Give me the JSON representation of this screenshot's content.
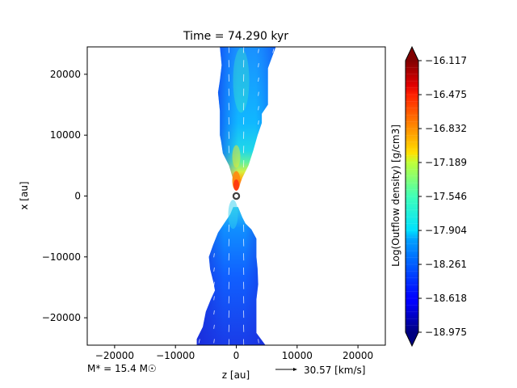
{
  "chart_data": {
    "type": "heatmap",
    "title": "Time = 74.290 kyr",
    "xlabel": "z [au]",
    "ylabel": "x [au]",
    "xlim": [
      -24500,
      24500
    ],
    "ylim": [
      -24500,
      24500
    ],
    "x_ticks": [
      {
        "value": -20000,
        "label": "−20000"
      },
      {
        "value": -10000,
        "label": "−10000"
      },
      {
        "value": 0,
        "label": "0"
      },
      {
        "value": 10000,
        "label": "10000"
      },
      {
        "value": 20000,
        "label": "20000"
      }
    ],
    "y_ticks": [
      {
        "value": 20000,
        "label": "20000"
      },
      {
        "value": 10000,
        "label": "10000"
      },
      {
        "value": 0,
        "label": "0"
      },
      {
        "value": -10000,
        "label": "−10000"
      },
      {
        "value": -20000,
        "label": "−20000"
      }
    ],
    "colorbar": {
      "label": "Log(Outflow density) [g/cm3]",
      "range": [
        -18.975,
        -16.117
      ],
      "colormap": "jet",
      "extend": "both",
      "ticks": [
        "−16.117",
        "−16.475",
        "−16.832",
        "−17.189",
        "−17.546",
        "−17.904",
        "−18.261",
        "−18.618",
        "−18.975"
      ],
      "tick_values": [
        -16.117,
        -16.475,
        -16.832,
        -17.189,
        -17.546,
        -17.904,
        -18.261,
        -18.618,
        -18.975
      ]
    },
    "outflow_upper": {
      "right_edge": [
        [
          500,
          1700
        ],
        [
          1000,
          3000
        ],
        [
          2000,
          5000
        ],
        [
          2800,
          7500
        ],
        [
          3500,
          10000
        ],
        [
          4200,
          12000
        ],
        [
          4200,
          13500
        ],
        [
          5200,
          15000
        ],
        [
          5200,
          21000
        ],
        [
          6500,
          24500
        ]
      ],
      "left_edge": [
        [
          -300,
          1700
        ],
        [
          -600,
          3000
        ],
        [
          -1200,
          5000
        ],
        [
          -2200,
          7000
        ],
        [
          -2500,
          9000
        ],
        [
          -2700,
          10000
        ],
        [
          -2700,
          12500
        ],
        [
          -2700,
          14000
        ],
        [
          -3000,
          17000
        ],
        [
          -2700,
          19000
        ],
        [
          -2400,
          21500
        ],
        [
          -2700,
          24500
        ]
      ]
    },
    "outflow_lower": {
      "right_edge": [
        [
          300,
          -1800
        ],
        [
          1000,
          -3500
        ],
        [
          1500,
          -4500
        ],
        [
          2500,
          -5500
        ],
        [
          3300,
          -7000
        ],
        [
          3300,
          -10000
        ],
        [
          3500,
          -12000
        ],
        [
          3600,
          -14500
        ],
        [
          3300,
          -17000
        ],
        [
          3300,
          -22500
        ],
        [
          4800,
          -24500
        ]
      ],
      "left_edge": [
        [
          -500,
          -1800
        ],
        [
          -1000,
          -3000
        ],
        [
          -2000,
          -4500
        ],
        [
          -3000,
          -6000
        ],
        [
          -3800,
          -8000
        ],
        [
          -4500,
          -10000
        ],
        [
          -4300,
          -12000
        ],
        [
          -3800,
          -14000
        ],
        [
          -3500,
          -15500
        ],
        [
          -4200,
          -17000
        ],
        [
          -5000,
          -19000
        ],
        [
          -5500,
          -21500
        ],
        [
          -6500,
          -23500
        ],
        [
          -6500,
          -24500
        ]
      ]
    },
    "density_samples": [
      {
        "z": 0,
        "x": 1500,
        "value": -16.6
      },
      {
        "z": 0,
        "x": 3000,
        "value": -17.2
      },
      {
        "z": 0,
        "x": 5000,
        "value": -17.5
      },
      {
        "z": 500,
        "x": 10000,
        "value": -17.8
      },
      {
        "z": 500,
        "x": 20000,
        "value": -18.0
      },
      {
        "z": 0,
        "x": -1500,
        "value": -17.7
      },
      {
        "z": -500,
        "x": -5000,
        "value": -18.1
      },
      {
        "z": 0,
        "x": -15000,
        "value": -18.5
      }
    ],
    "star": {
      "z": 0,
      "x": 0
    },
    "stellar_mass_label": "M* = 15.4 M☉",
    "velocity_key": {
      "value": 30.57,
      "label": "30.57 [km/s]"
    }
  },
  "colors": {
    "outflow_fill_dark": "#1a3cf0",
    "outflow_fill_mid": "#0f90ff",
    "outflow_fill_light": "#15d6ee",
    "outflow_core_green": "#9cf07a",
    "outflow_core_yellow": "#f0e020",
    "outflow_core_orange": "#ff8a10",
    "outflow_core_red": "#ff3810",
    "star_ring": "#404040"
  }
}
